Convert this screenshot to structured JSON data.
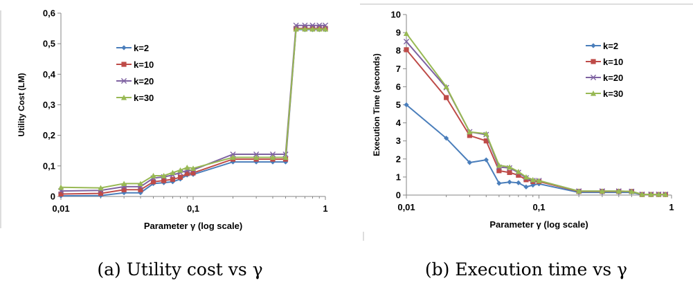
{
  "colors": {
    "k2": "#4a7ebb",
    "k10": "#be4b48",
    "k20": "#7e62a1",
    "k30": "#98b954"
  },
  "captions": {
    "a": "(a) Utility cost vs γ",
    "b": "(b) Execution time vs γ"
  },
  "chart_data": [
    {
      "type": "line",
      "xscale": "log",
      "xlim": [
        0.01,
        1
      ],
      "ylim": [
        0,
        0.6
      ],
      "xticks": [
        0.01,
        0.1,
        1
      ],
      "xtick_labels": [
        "0,01",
        "0,1",
        "1"
      ],
      "yticks": [
        0,
        0.1,
        0.2,
        0.3,
        0.4,
        0.5,
        0.6
      ],
      "ytick_labels": [
        "0",
        "0,1",
        "0,2",
        "0,3",
        "0,4",
        "0,5",
        "0,6"
      ],
      "xlabel": "Parameter γ (log scale)",
      "ylabel": "Utility Cost (LM)",
      "grid": false,
      "legend_position": "left-middle",
      "x": [
        0.01,
        0.02,
        0.03,
        0.04,
        0.05,
        0.06,
        0.07,
        0.08,
        0.09,
        0.1,
        0.2,
        0.3,
        0.4,
        0.5,
        0.6,
        0.7,
        0.8,
        0.9,
        1.0
      ],
      "series": [
        {
          "name": "k=2",
          "marker": "diamond",
          "values": [
            0.002,
            0.003,
            0.012,
            0.012,
            0.042,
            0.045,
            0.048,
            0.057,
            0.07,
            0.072,
            0.113,
            0.113,
            0.113,
            0.113,
            0.546,
            0.546,
            0.546,
            0.546,
            0.546
          ]
        },
        {
          "name": "k=10",
          "marker": "square",
          "values": [
            0.008,
            0.01,
            0.022,
            0.022,
            0.048,
            0.052,
            0.056,
            0.063,
            0.075,
            0.077,
            0.122,
            0.122,
            0.122,
            0.122,
            0.55,
            0.55,
            0.55,
            0.55,
            0.55
          ]
        },
        {
          "name": "k=20",
          "marker": "cross",
          "values": [
            0.018,
            0.02,
            0.032,
            0.032,
            0.06,
            0.064,
            0.07,
            0.078,
            0.085,
            0.087,
            0.138,
            0.138,
            0.138,
            0.138,
            0.56,
            0.56,
            0.56,
            0.56,
            0.56
          ]
        },
        {
          "name": "k=30",
          "marker": "triangle",
          "values": [
            0.03,
            0.028,
            0.042,
            0.042,
            0.068,
            0.068,
            0.078,
            0.086,
            0.095,
            0.092,
            0.128,
            0.128,
            0.128,
            0.128,
            0.548,
            0.548,
            0.548,
            0.548,
            0.548
          ]
        }
      ]
    },
    {
      "type": "line",
      "xscale": "log",
      "xlim": [
        0.01,
        1
      ],
      "ylim": [
        0,
        10
      ],
      "xticks": [
        0.01,
        0.1,
        1
      ],
      "xtick_labels": [
        "0,01",
        "0,1",
        "1"
      ],
      "yticks": [
        0,
        1,
        2,
        3,
        4,
        5,
        6,
        7,
        8,
        9,
        10
      ],
      "ytick_labels": [
        "0",
        "1",
        "2",
        "3",
        "4",
        "5",
        "6",
        "7",
        "8",
        "9",
        "10"
      ],
      "xlabel": "Parameter γ (log scale)",
      "ylabel": "Execution Time (seconds)",
      "grid": false,
      "legend_position": "right-upper",
      "x": [
        0.01,
        0.02,
        0.03,
        0.04,
        0.05,
        0.06,
        0.07,
        0.08,
        0.09,
        0.1,
        0.2,
        0.3,
        0.4,
        0.5,
        0.6,
        0.7,
        0.8,
        0.9
      ],
      "series": [
        {
          "name": "k=2",
          "marker": "diamond",
          "values": [
            5.0,
            3.15,
            1.8,
            1.95,
            0.65,
            0.72,
            0.68,
            0.45,
            0.55,
            0.62,
            0.15,
            0.15,
            0.15,
            0.15,
            0.02,
            0.02,
            0.02,
            0.02
          ]
        },
        {
          "name": "k=10",
          "marker": "square",
          "values": [
            8.05,
            5.4,
            3.3,
            3.0,
            1.35,
            1.25,
            1.1,
            0.85,
            0.75,
            0.75,
            0.2,
            0.2,
            0.2,
            0.2,
            0.03,
            0.03,
            0.03,
            0.03
          ]
        },
        {
          "name": "k=20",
          "marker": "cross",
          "values": [
            8.5,
            5.95,
            3.5,
            3.35,
            1.55,
            1.5,
            1.25,
            0.95,
            0.8,
            0.8,
            0.22,
            0.22,
            0.22,
            0.2,
            0.04,
            0.04,
            0.04,
            0.04
          ]
        },
        {
          "name": "k=30",
          "marker": "triangle",
          "values": [
            8.95,
            6.0,
            3.5,
            3.4,
            1.65,
            1.55,
            1.3,
            1.0,
            0.85,
            0.8,
            0.22,
            0.22,
            0.22,
            0.2,
            0.04,
            0.04,
            0.04,
            0.04
          ]
        }
      ]
    }
  ]
}
